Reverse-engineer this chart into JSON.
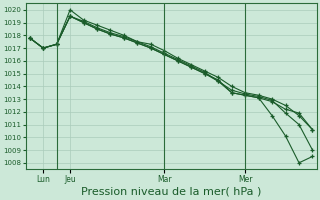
{
  "bg_color": "#cce8d8",
  "grid_color": "#aaccbb",
  "line_color": "#1a5c2a",
  "marker_color": "#1a5c2a",
  "xlabel": "Pression niveau de la mer( hPa )",
  "xlabel_fontsize": 8,
  "ylim": [
    1007.5,
    1020.5
  ],
  "yticks": [
    1008,
    1009,
    1010,
    1011,
    1012,
    1013,
    1014,
    1015,
    1016,
    1017,
    1018,
    1019,
    1020
  ],
  "xtick_labels": [
    "Lun",
    "Jeu",
    "Mar",
    "Mer"
  ],
  "xtick_positions": [
    1,
    3,
    10,
    16
  ],
  "vline_positions": [
    2,
    10,
    16
  ],
  "total_points": 22,
  "line1": [
    1017.8,
    1017.0,
    1017.3,
    1019.5,
    1019.0,
    1018.5,
    1018.1,
    1017.8,
    1017.4,
    1017.0,
    1016.5,
    1016.0,
    1015.5,
    1015.0,
    1014.5,
    1013.5,
    1013.3,
    1013.1,
    1012.8,
    1012.2,
    1011.9,
    1010.6
  ],
  "line2": [
    1017.8,
    1017.0,
    1017.3,
    1020.0,
    1019.2,
    1018.8,
    1018.4,
    1018.0,
    1017.5,
    1017.3,
    1016.8,
    1016.2,
    1015.7,
    1015.2,
    1014.7,
    1014.0,
    1013.5,
    1013.3,
    1013.0,
    1012.5,
    1011.7,
    1010.6
  ],
  "line3": [
    1017.8,
    1017.0,
    1017.3,
    1019.5,
    1019.1,
    1018.6,
    1018.2,
    1017.9,
    1017.5,
    1017.1,
    1016.6,
    1016.1,
    1015.6,
    1015.1,
    1014.4,
    1013.7,
    1013.4,
    1013.2,
    1012.9,
    1011.9,
    1011.0,
    1009.0
  ],
  "line4": [
    1017.8,
    1017.0,
    1017.3,
    1019.5,
    1019.0,
    1018.5,
    1018.1,
    1017.8,
    1017.4,
    1017.0,
    1016.5,
    1016.0,
    1015.5,
    1015.0,
    1014.4,
    1013.5,
    1013.3,
    1013.1,
    1011.7,
    1010.1,
    1008.0,
    1008.5
  ],
  "vline_color": "#2a6b3a"
}
